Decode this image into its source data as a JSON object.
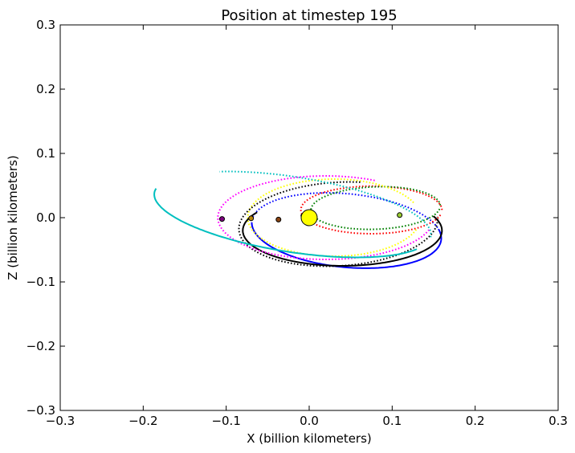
{
  "chart_data": {
    "type": "scatter",
    "title": "Position at timestep 195",
    "xlabel": "X (billion kilometers)",
    "ylabel": "Z (billion kilometers)",
    "xlim": [
      -0.3,
      0.3
    ],
    "ylim": [
      -0.3,
      0.3
    ],
    "xticks": [
      -0.3,
      -0.2,
      -0.1,
      0.0,
      0.1,
      0.2,
      0.3
    ],
    "yticks": [
      -0.3,
      -0.2,
      -0.1,
      0.0,
      0.1,
      0.2,
      0.3
    ],
    "xtick_labels": [
      "−0.3",
      "−0.2",
      "−0.1",
      "0.0",
      "0.1",
      "0.2",
      "0.3"
    ],
    "ytick_labels": [
      "−0.3",
      "−0.2",
      "−0.1",
      "0.0",
      "0.1",
      "0.2",
      "0.3"
    ],
    "grid": false,
    "legend": "none",
    "sun": {
      "x": 0.0,
      "y": 0.0,
      "color": "#ffff00"
    },
    "trajectories": [
      {
        "color": "#0000ff",
        "cx": 0.045,
        "cy": -0.02,
        "a": 0.115,
        "b": 0.057,
        "tilt_deg": -8,
        "t_start": 0.35,
        "t_end": 3.2,
        "dash": true
      },
      {
        "color": "#0000ff",
        "cx": 0.045,
        "cy": -0.02,
        "a": 0.115,
        "b": 0.057,
        "tilt_deg": -8,
        "t_start": 3.2,
        "t_end": 6.6,
        "dash": false
      },
      {
        "color": "#ff0000",
        "cx": 0.075,
        "cy": 0.012,
        "a": 0.085,
        "b": 0.037,
        "tilt_deg": 0,
        "t_start": 0.0,
        "t_end": 6.1,
        "dash": true
      },
      {
        "color": "#008000",
        "cx": 0.08,
        "cy": 0.015,
        "a": 0.078,
        "b": 0.033,
        "tilt_deg": 3,
        "t_start": 0.0,
        "t_end": 6.2,
        "dash": true
      },
      {
        "color": "#ffff00",
        "cx": 0.03,
        "cy": 0.0,
        "a": 0.104,
        "b": 0.06,
        "tilt_deg": 0,
        "t_start": 0.4,
        "t_end": 6.0,
        "dash": true
      },
      {
        "color": "#000000",
        "cx": 0.035,
        "cy": -0.01,
        "a": 0.12,
        "b": 0.065,
        "tilt_deg": 5,
        "t_start": 1.3,
        "t_end": 6.3,
        "dash": true
      },
      {
        "color": "#000000",
        "cx": 0.04,
        "cy": -0.02,
        "a": 0.12,
        "b": 0.055,
        "tilt_deg": 0,
        "t_start": 2.6,
        "t_end": 6.7,
        "dash": false
      },
      {
        "color": "#ff00ff",
        "cx": 0.02,
        "cy": 0.0,
        "a": 0.13,
        "b": 0.065,
        "tilt_deg": 0,
        "t_start": 1.1,
        "t_end": 6.0,
        "dash": true
      },
      {
        "color": "#00bfbf",
        "cx": -0.02,
        "cy": 0.005,
        "a": 0.17,
        "b": 0.058,
        "tilt_deg": -12,
        "t_start": 3.05,
        "t_end": 5.9,
        "dash": false
      },
      {
        "color": "#00bfbf",
        "cx": -0.02,
        "cy": 0.005,
        "a": 0.17,
        "b": 0.058,
        "tilt_deg": -12,
        "t_start": 0.0,
        "t_end": 2.2,
        "dash": true
      }
    ],
    "bodies": [
      {
        "x": 0.109,
        "y": 0.004,
        "color": "#9acd32"
      },
      {
        "x": -0.105,
        "y": -0.002,
        "color": "#800080"
      },
      {
        "x": -0.07,
        "y": -0.001,
        "color": "#b8860b"
      },
      {
        "x": -0.037,
        "y": -0.003,
        "color": "#8b4513"
      },
      {
        "x": -0.007,
        "y": 0.003,
        "color": "#c0c0c0"
      }
    ]
  }
}
